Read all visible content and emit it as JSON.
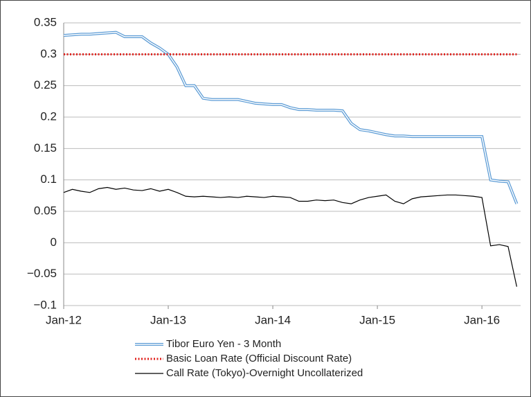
{
  "chart_data": {
    "type": "line",
    "x": [
      2012,
      2012.083,
      2012.167,
      2012.25,
      2012.333,
      2012.417,
      2012.5,
      2012.583,
      2012.667,
      2012.75,
      2012.833,
      2012.917,
      2013,
      2013.083,
      2013.167,
      2013.25,
      2013.333,
      2013.417,
      2013.5,
      2013.583,
      2013.667,
      2013.75,
      2013.833,
      2013.917,
      2014,
      2014.083,
      2014.167,
      2014.25,
      2014.333,
      2014.417,
      2014.5,
      2014.583,
      2014.667,
      2014.75,
      2014.833,
      2014.917,
      2015,
      2015.083,
      2015.167,
      2015.25,
      2015.333,
      2015.417,
      2015.5,
      2015.583,
      2015.667,
      2015.75,
      2015.833,
      2015.917,
      2016,
      2016.083,
      2016.167,
      2016.25,
      2016.333
    ],
    "series": [
      {
        "name": "Tibor Euro Yen - 3 Month",
        "color": "#5b9bd5",
        "style": "double",
        "values": [
          0.33,
          0.331,
          0.332,
          0.332,
          0.333,
          0.334,
          0.335,
          0.328,
          0.328,
          0.328,
          0.318,
          0.31,
          0.3,
          0.28,
          0.25,
          0.25,
          0.23,
          0.228,
          0.228,
          0.228,
          0.228,
          0.225,
          0.222,
          0.221,
          0.22,
          0.22,
          0.215,
          0.212,
          0.212,
          0.211,
          0.211,
          0.211,
          0.21,
          0.19,
          0.18,
          0.178,
          0.175,
          0.172,
          0.17,
          0.17,
          0.169,
          0.169,
          0.169,
          0.169,
          0.169,
          0.169,
          0.169,
          0.169,
          0.169,
          0.1,
          0.098,
          0.097,
          0.062
        ]
      },
      {
        "name": "Basic Loan Rate (Official Discount Rate)",
        "color": "#e0201b",
        "style": "dotted",
        "values": [
          0.3,
          0.3,
          0.3,
          0.3,
          0.3,
          0.3,
          0.3,
          0.3,
          0.3,
          0.3,
          0.3,
          0.3,
          0.3,
          0.3,
          0.3,
          0.3,
          0.3,
          0.3,
          0.3,
          0.3,
          0.3,
          0.3,
          0.3,
          0.3,
          0.3,
          0.3,
          0.3,
          0.3,
          0.3,
          0.3,
          0.3,
          0.3,
          0.3,
          0.3,
          0.3,
          0.3,
          0.3,
          0.3,
          0.3,
          0.3,
          0.3,
          0.3,
          0.3,
          0.3,
          0.3,
          0.3,
          0.3,
          0.3,
          0.3,
          0.3,
          0.3,
          0.3,
          0.3
        ]
      },
      {
        "name": "Call Rate (Tokyo)-Overnight Uncollaterized",
        "color": "#000000",
        "style": "solid",
        "values": [
          0.08,
          0.085,
          0.082,
          0.08,
          0.086,
          0.088,
          0.085,
          0.087,
          0.084,
          0.083,
          0.086,
          0.082,
          0.085,
          0.08,
          0.074,
          0.073,
          0.074,
          0.073,
          0.072,
          0.073,
          0.072,
          0.074,
          0.073,
          0.072,
          0.074,
          0.073,
          0.072,
          0.066,
          0.066,
          0.068,
          0.067,
          0.068,
          0.064,
          0.062,
          0.068,
          0.072,
          0.074,
          0.076,
          0.066,
          0.062,
          0.07,
          0.073,
          0.074,
          0.075,
          0.076,
          0.076,
          0.075,
          0.074,
          0.072,
          -0.005,
          -0.003,
          -0.006,
          -0.07
        ]
      }
    ],
    "xlim": [
      2012,
      2016.37
    ],
    "xticks": [
      {
        "value": 2012,
        "label": "Jan-12"
      },
      {
        "value": 2013,
        "label": "Jan-13"
      },
      {
        "value": 2014,
        "label": "Jan-14"
      },
      {
        "value": 2015,
        "label": "Jan-15"
      },
      {
        "value": 2016,
        "label": "Jan-16"
      }
    ],
    "ylim": [
      -0.1,
      0.35
    ],
    "yticks": [
      0.35,
      0.3,
      0.25,
      0.2,
      0.15,
      0.1,
      0.05,
      0,
      {
        "value": -0.05,
        "label": "−0.05"
      },
      {
        "value": -0.1,
        "label": "−0.1"
      }
    ],
    "grid": true,
    "legend": "bottom"
  }
}
